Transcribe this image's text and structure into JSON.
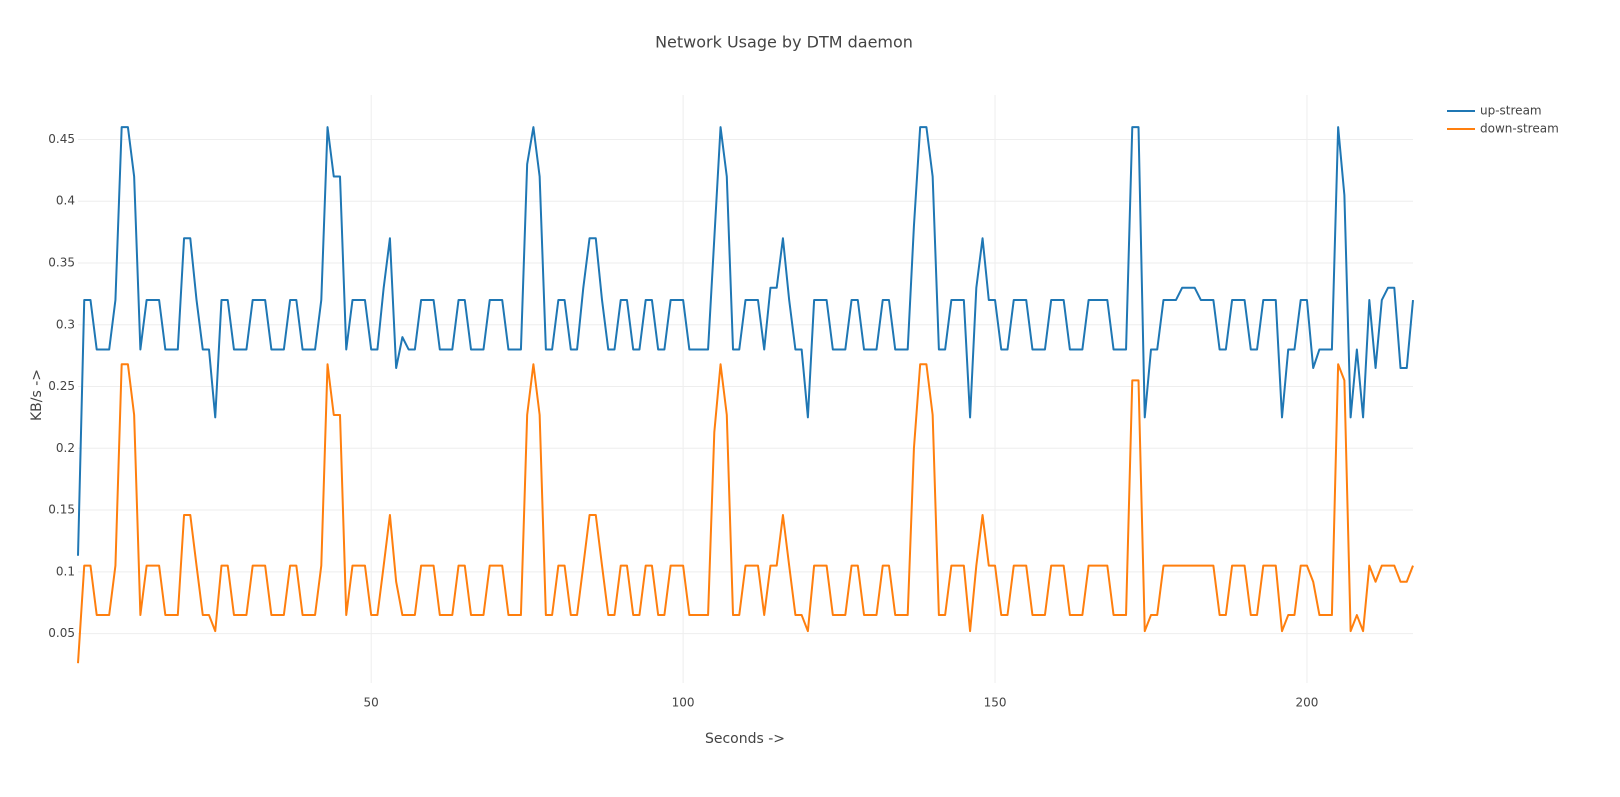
{
  "chart_data": {
    "type": "line",
    "title": "Network Usage by DTM daemon",
    "x_label": "Seconds ->",
    "y_label": "KB/s ->",
    "x": [
      3,
      4,
      5,
      6,
      7,
      8,
      9,
      10,
      11,
      12,
      13,
      14,
      15,
      16,
      17,
      18,
      19,
      20,
      21,
      22,
      23,
      24,
      25,
      26,
      27,
      28,
      29,
      30,
      31,
      32,
      33,
      34,
      35,
      36,
      37,
      38,
      39,
      40,
      41,
      42,
      43,
      44,
      45,
      46,
      47,
      48,
      49,
      50,
      51,
      52,
      53,
      54,
      55,
      56,
      57,
      58,
      59,
      60,
      61,
      62,
      63,
      64,
      65,
      66,
      67,
      68,
      69,
      70,
      71,
      72,
      73,
      74,
      75,
      76,
      77,
      78,
      79,
      80,
      81,
      82,
      83,
      84,
      85,
      86,
      87,
      88,
      89,
      90,
      91,
      92,
      93,
      94,
      95,
      96,
      97,
      98,
      99,
      100,
      101,
      102,
      103,
      104,
      105,
      106,
      107,
      108,
      109,
      110,
      111,
      112,
      113,
      114,
      115,
      116,
      117,
      118,
      119,
      120,
      121,
      122,
      123,
      124,
      125,
      126,
      127,
      128,
      129,
      130,
      131,
      132,
      133,
      134,
      135,
      136,
      137,
      138,
      139,
      140,
      141,
      142,
      143,
      144,
      145,
      146,
      147,
      148,
      149,
      150,
      151,
      152,
      153,
      154,
      155,
      156,
      157,
      158,
      159,
      160,
      161,
      162,
      163,
      164,
      165,
      166,
      167,
      168,
      169,
      170,
      171,
      172,
      173,
      174,
      175,
      176,
      177,
      178,
      179,
      180,
      181,
      182,
      183,
      184,
      185,
      186,
      187,
      188,
      189,
      190,
      191,
      192,
      193,
      194,
      195,
      196,
      197,
      198,
      199,
      200,
      201,
      202,
      203,
      204,
      205,
      206,
      207,
      208,
      209,
      210,
      211,
      212,
      213,
      214,
      215,
      216,
      217
    ],
    "series": [
      {
        "name": "up-stream",
        "color": "#1f77b4",
        "values": [
          0.113,
          0.32,
          0.32,
          0.28,
          0.28,
          0.28,
          0.32,
          0.46,
          0.46,
          0.42,
          0.28,
          0.32,
          0.32,
          0.32,
          0.28,
          0.28,
          0.28,
          0.37,
          0.37,
          0.32,
          0.28,
          0.28,
          0.225,
          0.32,
          0.32,
          0.28,
          0.28,
          0.28,
          0.32,
          0.32,
          0.32,
          0.28,
          0.28,
          0.28,
          0.32,
          0.32,
          0.28,
          0.28,
          0.28,
          0.32,
          0.46,
          0.42,
          0.42,
          0.28,
          0.32,
          0.32,
          0.32,
          0.28,
          0.28,
          0.33,
          0.37,
          0.265,
          0.29,
          0.28,
          0.28,
          0.32,
          0.32,
          0.32,
          0.28,
          0.28,
          0.28,
          0.32,
          0.32,
          0.28,
          0.28,
          0.28,
          0.32,
          0.32,
          0.32,
          0.28,
          0.28,
          0.28,
          0.43,
          0.46,
          0.42,
          0.28,
          0.28,
          0.32,
          0.32,
          0.28,
          0.28,
          0.33,
          0.37,
          0.37,
          0.32,
          0.28,
          0.28,
          0.32,
          0.32,
          0.28,
          0.28,
          0.32,
          0.32,
          0.28,
          0.28,
          0.32,
          0.32,
          0.32,
          0.28,
          0.28,
          0.28,
          0.28,
          0.37,
          0.46,
          0.42,
          0.28,
          0.28,
          0.32,
          0.32,
          0.32,
          0.28,
          0.33,
          0.33,
          0.37,
          0.32,
          0.28,
          0.28,
          0.225,
          0.32,
          0.32,
          0.32,
          0.28,
          0.28,
          0.28,
          0.32,
          0.32,
          0.28,
          0.28,
          0.28,
          0.32,
          0.32,
          0.28,
          0.28,
          0.28,
          0.38,
          0.46,
          0.46,
          0.42,
          0.28,
          0.28,
          0.32,
          0.32,
          0.32,
          0.225,
          0.33,
          0.37,
          0.32,
          0.32,
          0.28,
          0.28,
          0.32,
          0.32,
          0.32,
          0.28,
          0.28,
          0.28,
          0.32,
          0.32,
          0.32,
          0.28,
          0.28,
          0.28,
          0.32,
          0.32,
          0.32,
          0.32,
          0.28,
          0.28,
          0.28,
          0.46,
          0.46,
          0.225,
          0.28,
          0.28,
          0.32,
          0.32,
          0.32,
          0.33,
          0.33,
          0.33,
          0.32,
          0.32,
          0.32,
          0.28,
          0.28,
          0.32,
          0.32,
          0.32,
          0.28,
          0.28,
          0.32,
          0.32,
          0.32,
          0.225,
          0.28,
          0.28,
          0.32,
          0.32,
          0.265,
          0.28,
          0.28,
          0.28,
          0.46,
          0.405,
          0.225,
          0.28,
          0.225,
          0.32,
          0.265,
          0.32,
          0.33,
          0.33,
          0.265,
          0.265,
          0.32
        ]
      },
      {
        "name": "down-stream",
        "color": "#ff7f0e",
        "values": [
          0.026,
          0.105,
          0.105,
          0.065,
          0.065,
          0.065,
          0.105,
          0.268,
          0.268,
          0.227,
          0.065,
          0.105,
          0.105,
          0.105,
          0.065,
          0.065,
          0.065,
          0.146,
          0.146,
          0.105,
          0.065,
          0.065,
          0.052,
          0.105,
          0.105,
          0.065,
          0.065,
          0.065,
          0.105,
          0.105,
          0.105,
          0.065,
          0.065,
          0.065,
          0.105,
          0.105,
          0.065,
          0.065,
          0.065,
          0.105,
          0.268,
          0.227,
          0.227,
          0.065,
          0.105,
          0.105,
          0.105,
          0.065,
          0.065,
          0.105,
          0.146,
          0.092,
          0.065,
          0.065,
          0.065,
          0.105,
          0.105,
          0.105,
          0.065,
          0.065,
          0.065,
          0.105,
          0.105,
          0.065,
          0.065,
          0.065,
          0.105,
          0.105,
          0.105,
          0.065,
          0.065,
          0.065,
          0.227,
          0.268,
          0.227,
          0.065,
          0.065,
          0.105,
          0.105,
          0.065,
          0.065,
          0.105,
          0.146,
          0.146,
          0.105,
          0.065,
          0.065,
          0.105,
          0.105,
          0.065,
          0.065,
          0.105,
          0.105,
          0.065,
          0.065,
          0.105,
          0.105,
          0.105,
          0.065,
          0.065,
          0.065,
          0.065,
          0.213,
          0.268,
          0.227,
          0.065,
          0.065,
          0.105,
          0.105,
          0.105,
          0.065,
          0.105,
          0.105,
          0.146,
          0.105,
          0.065,
          0.065,
          0.052,
          0.105,
          0.105,
          0.105,
          0.065,
          0.065,
          0.065,
          0.105,
          0.105,
          0.065,
          0.065,
          0.065,
          0.105,
          0.105,
          0.065,
          0.065,
          0.065,
          0.2,
          0.268,
          0.268,
          0.227,
          0.065,
          0.065,
          0.105,
          0.105,
          0.105,
          0.052,
          0.105,
          0.146,
          0.105,
          0.105,
          0.065,
          0.065,
          0.105,
          0.105,
          0.105,
          0.065,
          0.065,
          0.065,
          0.105,
          0.105,
          0.105,
          0.065,
          0.065,
          0.065,
          0.105,
          0.105,
          0.105,
          0.105,
          0.065,
          0.065,
          0.065,
          0.255,
          0.255,
          0.052,
          0.065,
          0.065,
          0.105,
          0.105,
          0.105,
          0.105,
          0.105,
          0.105,
          0.105,
          0.105,
          0.105,
          0.065,
          0.065,
          0.105,
          0.105,
          0.105,
          0.065,
          0.065,
          0.105,
          0.105,
          0.105,
          0.052,
          0.065,
          0.065,
          0.105,
          0.105,
          0.092,
          0.065,
          0.065,
          0.065,
          0.268,
          0.255,
          0.052,
          0.065,
          0.052,
          0.105,
          0.092,
          0.105,
          0.105,
          0.105,
          0.092,
          0.092,
          0.105
        ]
      }
    ],
    "xlim": [
      3,
      217
    ],
    "xticks": [
      50,
      100,
      150,
      200
    ],
    "ylim": [
      0.01,
      0.486
    ],
    "yticks": [
      0.05,
      0.1,
      0.15,
      0.2,
      0.25,
      0.3,
      0.35,
      0.4,
      0.45
    ],
    "grid": true,
    "legend": "top-right"
  }
}
